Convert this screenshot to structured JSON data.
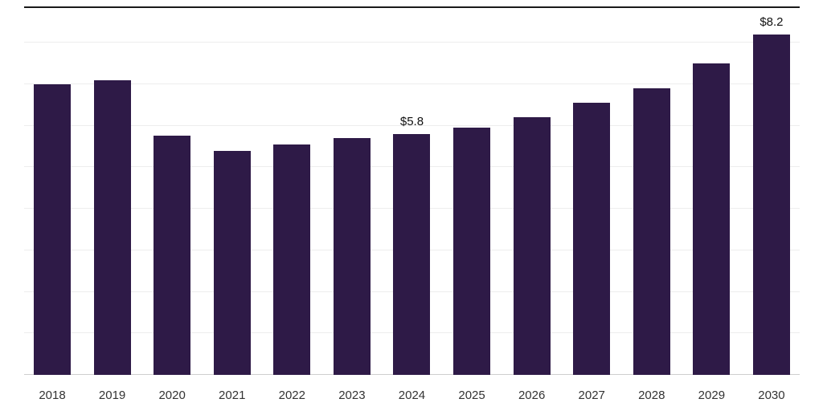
{
  "chart_data": {
    "type": "bar",
    "title": "",
    "xlabel": "",
    "ylabel": "",
    "categories": [
      "2018",
      "2019",
      "2020",
      "2021",
      "2022",
      "2023",
      "2024",
      "2025",
      "2026",
      "2027",
      "2028",
      "2029",
      "2030"
    ],
    "values": [
      7.0,
      7.1,
      5.75,
      5.4,
      5.55,
      5.7,
      5.8,
      5.95,
      6.2,
      6.55,
      6.9,
      7.5,
      8.2
    ],
    "bar_labels": [
      "",
      "",
      "",
      "",
      "",
      "",
      "$5.8",
      "",
      "",
      "",
      "",
      "",
      "$8.2"
    ],
    "ylim": [
      0,
      9
    ],
    "grid": "horizontal",
    "legend": "none"
  },
  "colors": {
    "bar": "#2e1a47",
    "gridline": "#ededed",
    "top_line": "#1a1a1a",
    "axis_line": "#cfcfcf",
    "data_label_text": "#111111",
    "tick_text": "#333333"
  }
}
